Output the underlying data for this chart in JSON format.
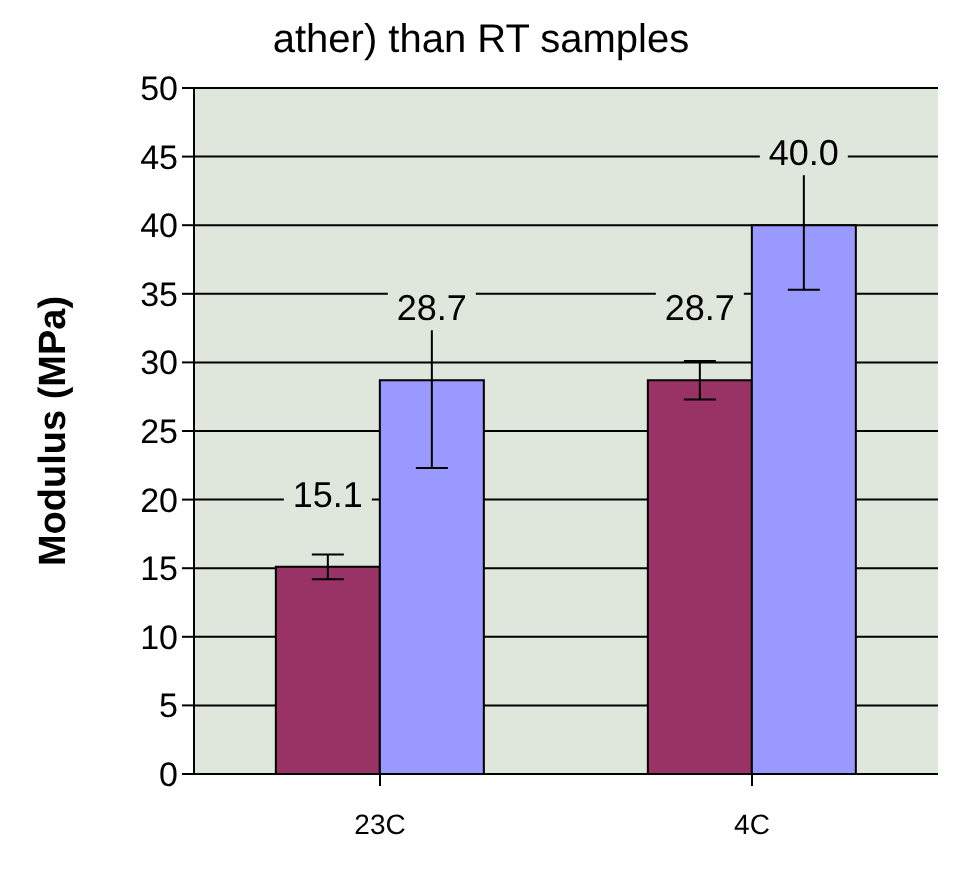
{
  "chart_data": {
    "type": "bar",
    "title": "ather) than RT samples",
    "ylabel": "Modulus (MPa)",
    "categories": [
      "23C",
      "4C"
    ],
    "series": [
      {
        "color": "#993366",
        "values": [
          15.1,
          28.7
        ],
        "errors": [
          0.9,
          1.4
        ],
        "value_labels": [
          "15.1",
          "28.7"
        ]
      },
      {
        "color": "#9999ff",
        "values": [
          28.7,
          40.0
        ],
        "errors": [
          6.4,
          4.7
        ],
        "value_labels": [
          "28.7",
          "40.0"
        ]
      }
    ],
    "ylim": [
      0,
      50
    ],
    "yticks": [
      0,
      5,
      10,
      15,
      20,
      25,
      30,
      35,
      40,
      45,
      50
    ],
    "grid": "y",
    "legend": false
  }
}
